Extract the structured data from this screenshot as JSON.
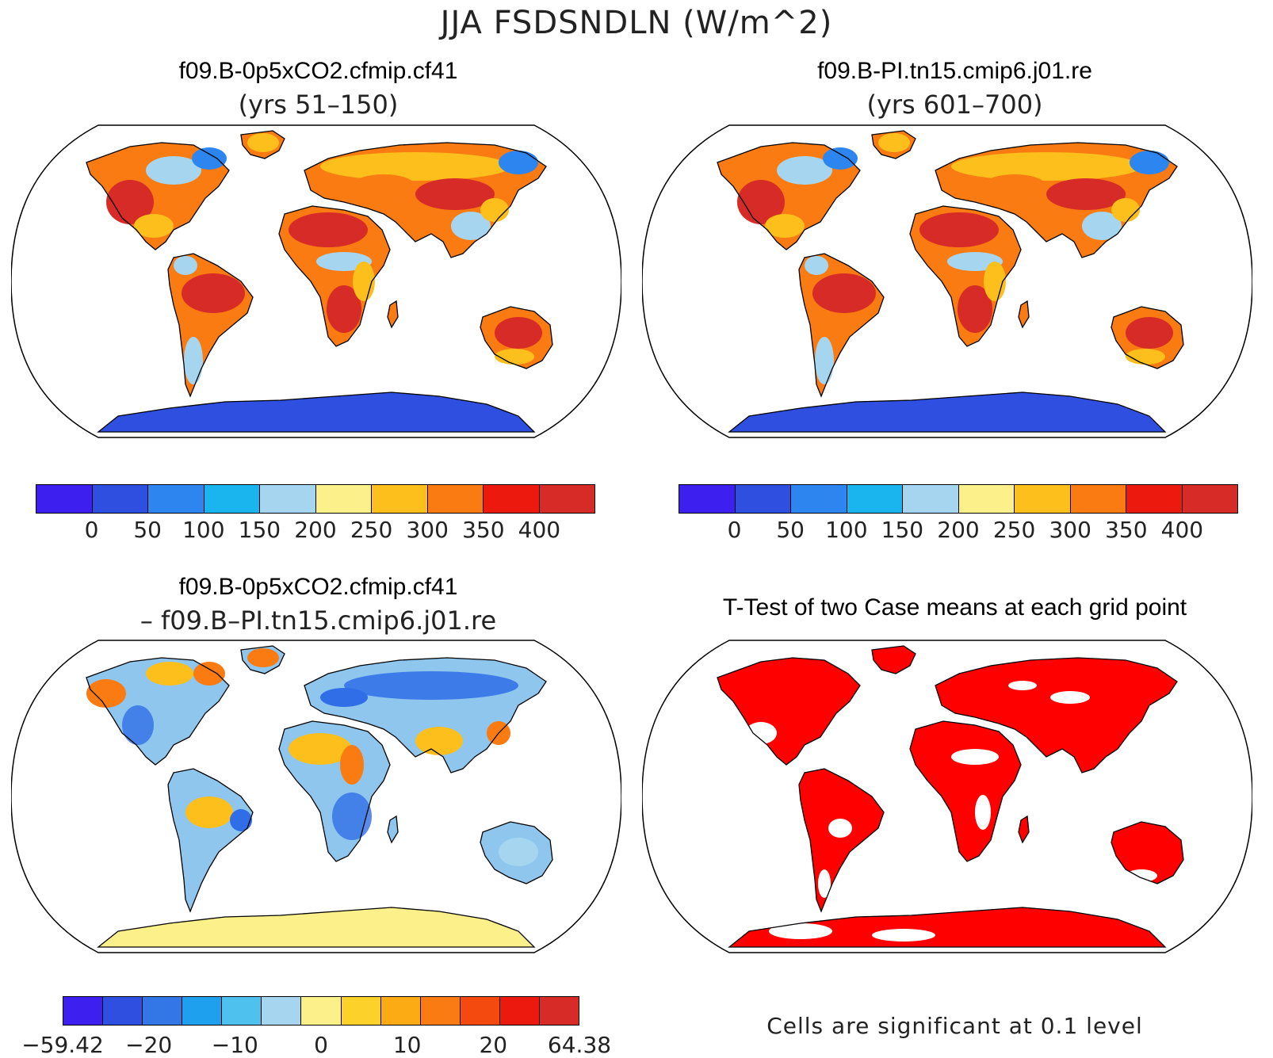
{
  "figure": {
    "title": "JJA FSDSNDLN (W/m^2)",
    "panels": [
      {
        "case": "f09.B-0p5xCO2.cfmip.cf41",
        "subtitle": "(yrs 51–150)"
      },
      {
        "case": "f09.B-PI.tn15.cmip6.j01.re",
        "subtitle": "(yrs 601–700)"
      },
      {
        "case": "f09.B-0p5xCO2.cfmip.cf41",
        "subtitle": "– f09.B–PI.tn15.cmip6.j01.re"
      },
      {
        "case": "T-Test of two Case means at each grid point",
        "subtitle": ""
      }
    ],
    "note": "Cells are significant at 0.1 level"
  },
  "colorbar_abs": {
    "colors": [
      "#3d1ff0",
      "#2f4fe0",
      "#2d86ef",
      "#1ab4ef",
      "#a6d6ef",
      "#fbf08a",
      "#fcbf1c",
      "#f97b12",
      "#ec1a0e",
      "#d62b26"
    ],
    "labels": [
      "0",
      "50",
      "100",
      "150",
      "200",
      "250",
      "300",
      "350",
      "400"
    ]
  },
  "colorbar_diff": {
    "colors": [
      "#3d1ff0",
      "#2f4fe0",
      "#3377e6",
      "#1ea0ef",
      "#4fc1ee",
      "#a6d6ef",
      "#fbf08a",
      "#fcd12a",
      "#fcab14",
      "#f97b12",
      "#f44a0f",
      "#ec1a0e",
      "#d62b26"
    ],
    "labels": [
      "−59.42",
      "−20",
      "−10",
      "0",
      "10",
      "20",
      "64.38"
    ]
  },
  "map_colors": {
    "land_hot": "#d62b26",
    "land_warm": "#f97b12",
    "land_mid": "#fcbf1c",
    "land_cool": "#a6d6ef",
    "land_cold": "#2d86ef",
    "antarctica_abs": "#2f4fe0",
    "antarctica_diff": "#fbf08a",
    "diff_neg": "#2f6ee6",
    "diff_pos": "#f97b12",
    "signif": "#ff0000"
  }
}
